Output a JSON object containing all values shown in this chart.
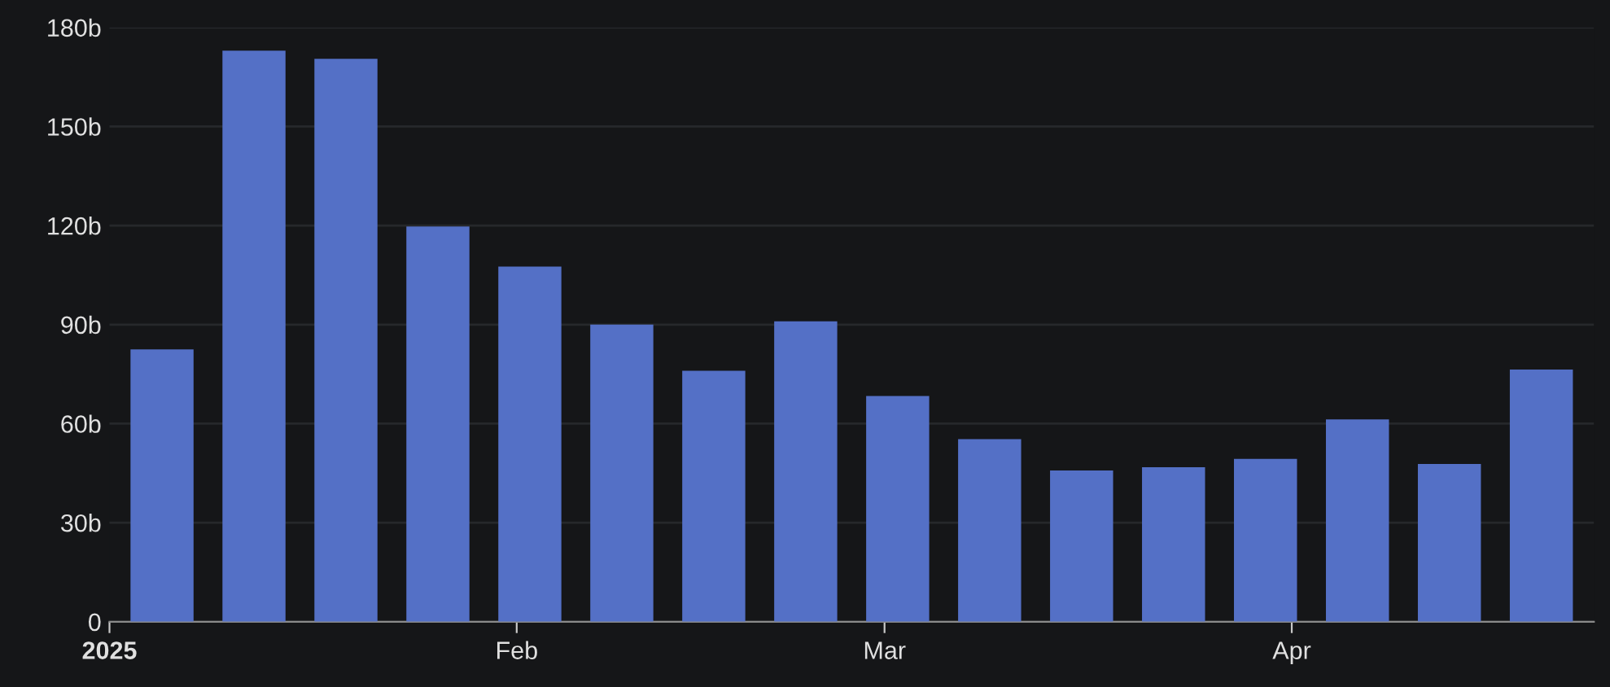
{
  "chart_data": {
    "type": "bar",
    "x": [
      "2025-01-05",
      "2025-01-12",
      "2025-01-19",
      "2025-01-26",
      "2025-02-02",
      "2025-02-09",
      "2025-02-16",
      "2025-02-23",
      "2025-03-02",
      "2025-03-09",
      "2025-03-16",
      "2025-03-23",
      "2025-03-30",
      "2025-04-06",
      "2025-04-13",
      "2025-04-20"
    ],
    "series": [
      {
        "color": "#5470c6",
        "values": [
          82.5,
          173,
          170.5,
          119.7,
          107.6,
          90,
          76,
          91,
          68.4,
          55.3,
          45.8,
          46.8,
          49.3,
          61.3,
          47.8,
          76.4
        ]
      }
    ],
    "xlim": [
      "2025-01-01",
      "2025-04-24"
    ],
    "xticks": [
      {
        "value": "2025-01-01",
        "label": "2025"
      },
      {
        "value": "2025-02-01",
        "label": "Feb"
      },
      {
        "value": "2025-03-01",
        "label": "Mar"
      },
      {
        "value": "2025-04-01",
        "label": "Apr"
      }
    ],
    "ylim": [
      0,
      180
    ],
    "yticks": [
      0,
      {
        "value": 30,
        "label": "30b"
      },
      {
        "value": 60,
        "label": "60b"
      },
      {
        "value": 90,
        "label": "90b"
      },
      {
        "value": 120,
        "label": "120b"
      },
      {
        "value": 150,
        "label": "150b"
      },
      {
        "value": 180,
        "label": "180b"
      }
    ],
    "grid": "y",
    "legend": false
  }
}
